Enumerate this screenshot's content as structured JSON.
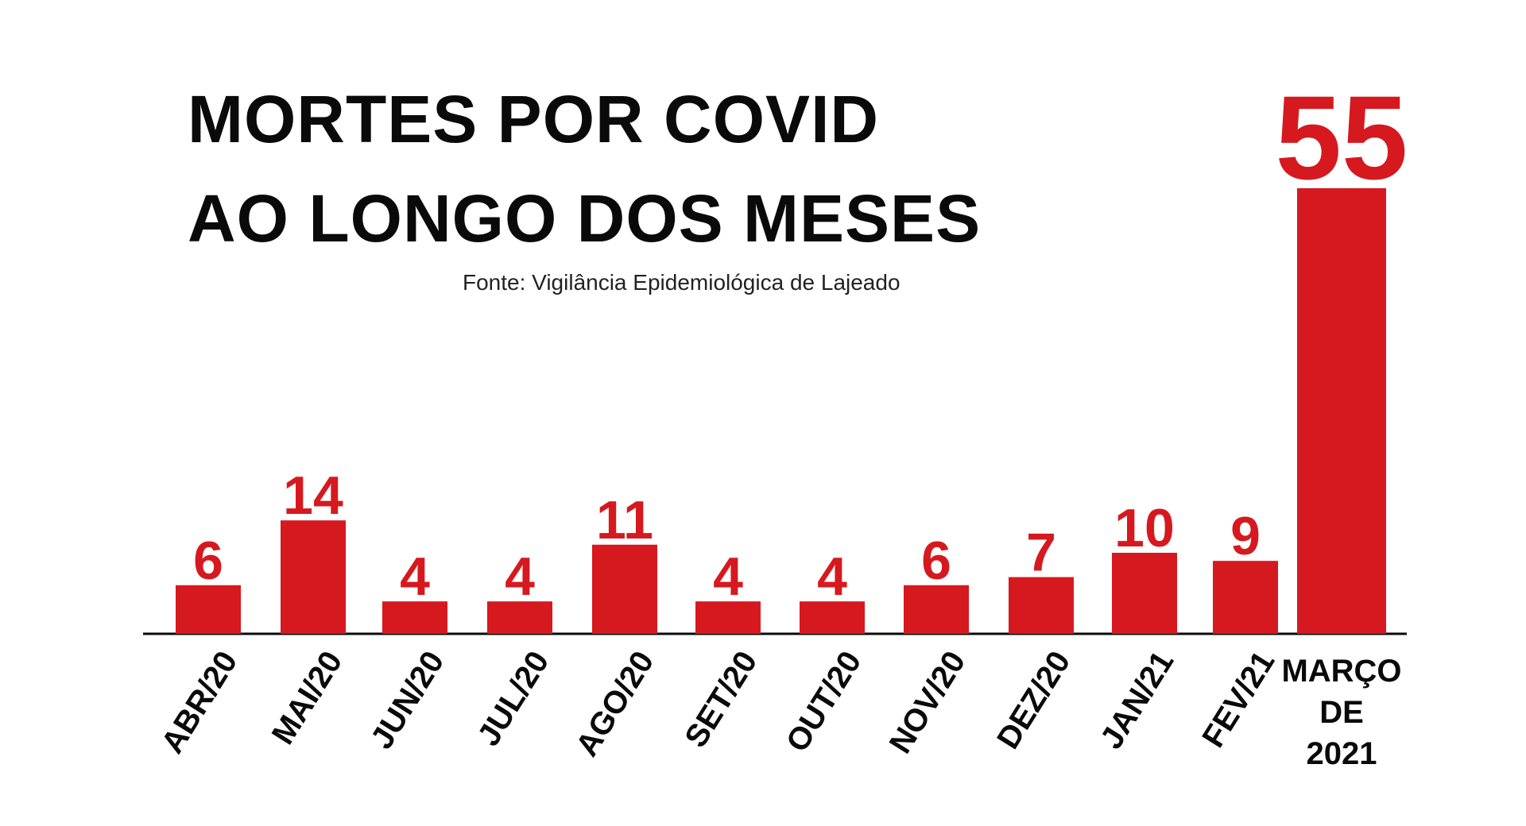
{
  "chart_data": {
    "type": "bar",
    "title_line1": "MORTES POR COVID",
    "title_line2": "AO LONGO DOS MESES",
    "source": "Fonte: Vigilância Epidemiológica de Lajeado",
    "categories": [
      "ABR/20",
      "MAI/20",
      "JUN/20",
      "JUL/20",
      "AGO/20",
      "SET/20",
      "OUT/20",
      "NOV/20",
      "DEZ/20",
      "JAN/21",
      "FEV/21",
      "MARÇO DE 2021"
    ],
    "last_category_lines": [
      "MARÇO",
      "DE",
      "2021"
    ],
    "values": [
      6,
      14,
      4,
      4,
      11,
      4,
      4,
      6,
      7,
      10,
      9,
      55
    ],
    "bar_color": "#d6191f",
    "label_color": "#d6191f",
    "axis_color": "#0a0a0a",
    "grid": false,
    "legend": "none"
  }
}
